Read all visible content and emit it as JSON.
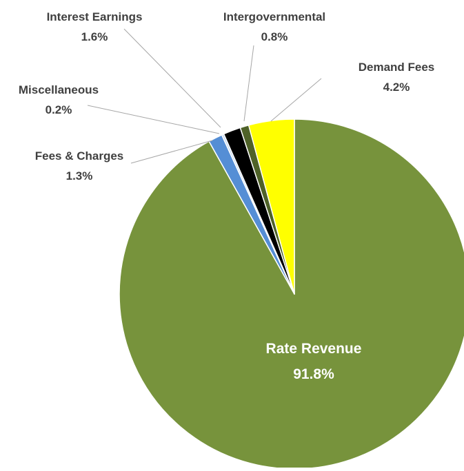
{
  "chart_data": {
    "type": "pie",
    "title": "",
    "start_angle_deg": 0,
    "direction": "clockwise",
    "slices": [
      {
        "label": "Rate Revenue",
        "value": 91.8,
        "value_label": "91.8%",
        "color": "#77933c",
        "label_position": "inside"
      },
      {
        "label": "Fees & Charges",
        "value": 1.3,
        "value_label": "1.3%",
        "color": "#558ed5",
        "label_position": "outside"
      },
      {
        "label": "Miscellaneous",
        "value": 0.2,
        "value_label": "0.2%",
        "color": "#c6d9f1",
        "label_position": "outside"
      },
      {
        "label": "Interest Earnings",
        "value": 1.6,
        "value_label": "1.6%",
        "color": "#000000",
        "label_position": "outside"
      },
      {
        "label": "Intergovernmental",
        "value": 0.8,
        "value_label": "0.8%",
        "color": "#4f6228",
        "label_position": "outside"
      },
      {
        "label": "Demand Fees",
        "value": 4.2,
        "value_label": "4.2%",
        "color": "#ffff00",
        "label_position": "outside"
      }
    ]
  }
}
